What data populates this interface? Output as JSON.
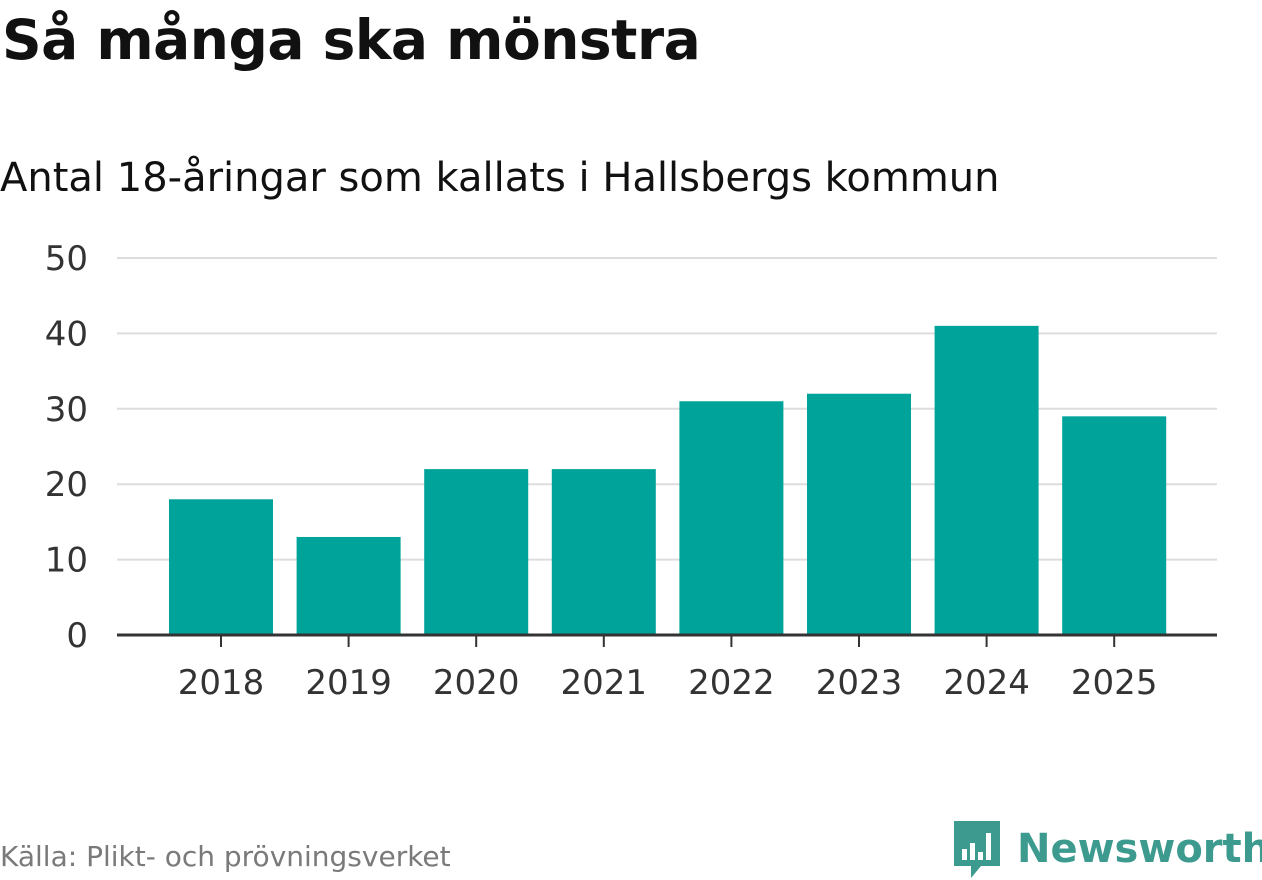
{
  "header": {
    "title": "Så många ska mönstra",
    "subtitle": "Antal 18-åringar som kallats i Hallsbergs kommun"
  },
  "footer": {
    "source": "Källa: Plikt- och prövningsverket",
    "brand": "Newsworthy",
    "brand_icon": "bar-chart-speech-bubble-icon"
  },
  "colors": {
    "bar": "#00a39a",
    "grid": "#dddddd",
    "axis": "#333333",
    "brand": "#3c9a8f"
  },
  "chart_data": {
    "type": "bar",
    "title": "Så många ska mönstra",
    "subtitle": "Antal 18-åringar som kallats i Hallsbergs kommun",
    "xlabel": "",
    "ylabel": "",
    "categories": [
      "2018",
      "2019",
      "2020",
      "2021",
      "2022",
      "2023",
      "2024",
      "2025"
    ],
    "values": [
      18,
      13,
      22,
      22,
      31,
      32,
      41,
      29
    ],
    "ylim": [
      0,
      50
    ],
    "yticks": [
      0,
      10,
      20,
      30,
      40,
      50
    ],
    "grid": true,
    "legend": "none"
  }
}
